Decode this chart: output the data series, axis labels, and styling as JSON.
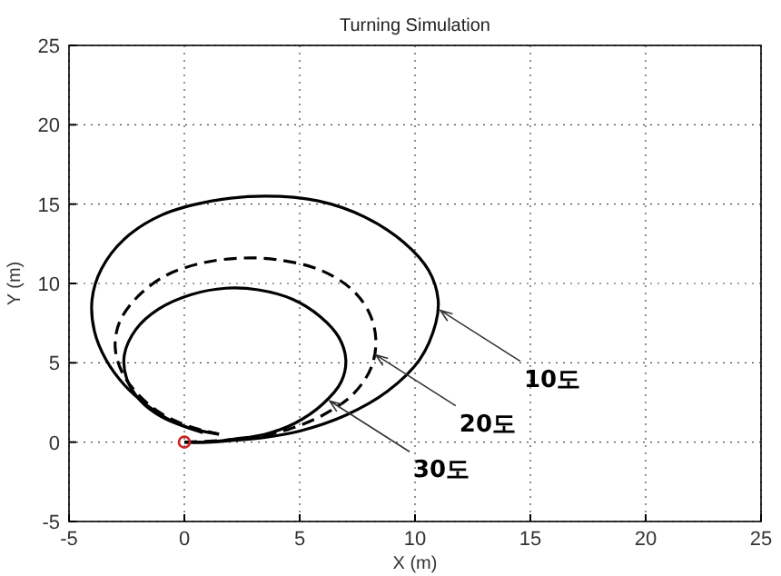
{
  "chart_data": {
    "type": "line",
    "title": "Turning Simulation",
    "xlabel": "X (m)",
    "ylabel": "Y (m)",
    "xlim": [
      -5,
      25
    ],
    "xticks": [
      -5,
      0,
      5,
      10,
      15,
      20,
      25
    ],
    "ylim": [
      -5,
      25
    ],
    "yticks": [
      -5,
      0,
      5,
      10,
      15,
      20,
      25
    ],
    "grid": true,
    "series": [
      {
        "color": "#000000",
        "line_style": "solid",
        "x": [
          0,
          1,
          2,
          3.5,
          5,
          7,
          8.8,
          10.2,
          10.9,
          11,
          10.6,
          9.5,
          7.8,
          5.8,
          3.5,
          1.2,
          -1,
          -2.6,
          -3.6,
          -4,
          -3.9,
          -3.4,
          -2.6,
          -1.6,
          -0.5,
          0.8
        ],
        "values": [
          0,
          0,
          0.1,
          0.3,
          0.7,
          1.7,
          3.2,
          5.2,
          7.5,
          9,
          10.8,
          12.6,
          14.2,
          15.2,
          15.5,
          15.2,
          14.3,
          12.8,
          10.9,
          9,
          7,
          5.2,
          3.6,
          2.3,
          1.3,
          0.6
        ]
      },
      {
        "color": "#000000",
        "line_style": "dashed",
        "x": [
          0,
          1.5,
          3,
          4.5,
          6,
          7.3,
          8.1,
          8.3,
          8,
          7.2,
          5.8,
          4,
          2.5,
          0.8,
          -0.8,
          -2,
          -2.8,
          -3,
          -2.7,
          -2,
          -1,
          0.2,
          1.5
        ],
        "values": [
          0,
          0.1,
          0.3,
          0.8,
          1.7,
          3,
          4.7,
          6.5,
          8.2,
          9.7,
          10.9,
          11.5,
          11.6,
          11.3,
          10.5,
          9.2,
          7.6,
          6,
          4.4,
          3,
          1.8,
          1,
          0.5
        ]
      },
      {
        "color": "#000000",
        "line_style": "solid",
        "x": [
          0,
          1,
          2.2,
          3.5,
          4.8,
          6,
          6.8,
          7,
          6.7,
          5.9,
          4.7,
          3.2,
          1.8,
          0.3,
          -1.1,
          -2.1,
          -2.6,
          -2.5,
          -1.9,
          -1,
          0.2,
          1.5
        ],
        "values": [
          0,
          0,
          0.2,
          0.5,
          1.2,
          2.4,
          3.8,
          5.2,
          6.6,
          7.9,
          9,
          9.6,
          9.7,
          9.3,
          8.4,
          7.1,
          5.5,
          4,
          2.6,
          1.6,
          0.9,
          0.5
        ]
      },
      {
        "type": "scatter",
        "color": "#cc2222",
        "marker": "circle",
        "x": [
          0
        ],
        "values": [
          0
        ]
      }
    ],
    "annotations": [
      {
        "text": "10도",
        "x": 11.1,
        "y": 8.3
      },
      {
        "text": "20도",
        "x": 8.3,
        "y": 5.5
      },
      {
        "text": "30도",
        "x": 6.3,
        "y": 2.6
      }
    ]
  }
}
